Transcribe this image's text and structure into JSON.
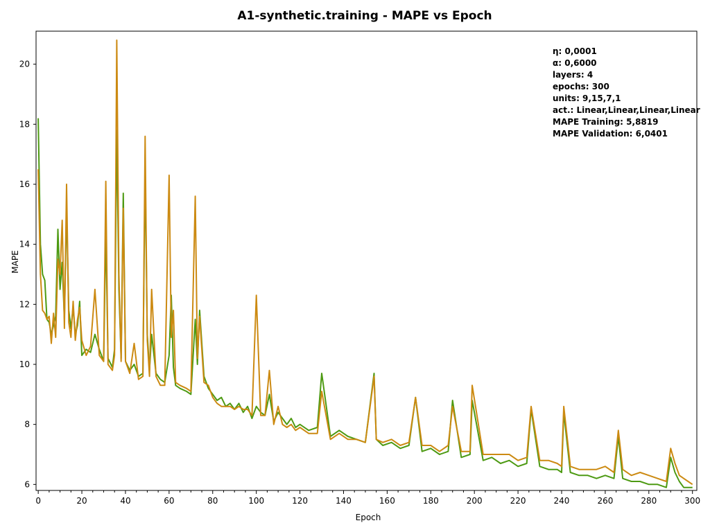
{
  "chart_data": {
    "type": "line",
    "title": "A1-synthetic.training - MAPE vs Epoch",
    "xlabel": "Epoch",
    "ylabel": "MAPE",
    "xlim": [
      -1,
      302
    ],
    "ylim": [
      5.8,
      21.1
    ],
    "x_ticks": [
      0,
      20,
      40,
      60,
      80,
      100,
      120,
      140,
      160,
      180,
      200,
      220,
      240,
      260,
      280,
      300
    ],
    "y_ticks": [
      6,
      8,
      10,
      12,
      14,
      16,
      18,
      20
    ],
    "grid": false,
    "colors": {
      "training": "#4d9a13",
      "validation": "#cc8a12"
    },
    "annotations": [
      "η: 0,0001",
      "α: 0,6000",
      "layers: 4",
      "epochs: 300",
      "units: 9,15,7,1",
      "act.: Linear,Linear,Linear,Linear",
      "MAPE Training: 5,8819",
      "MAPE Validation: 6,0401"
    ],
    "series": [
      {
        "key": "training",
        "x": [
          0,
          1,
          2,
          3,
          4,
          5,
          6,
          7,
          8,
          9,
          10,
          11,
          12,
          13,
          14,
          15,
          16,
          17,
          18,
          19,
          20,
          22,
          24,
          26,
          28,
          30,
          31,
          32,
          34,
          35,
          36,
          37,
          38,
          39,
          40,
          42,
          44,
          46,
          48,
          49,
          50,
          51,
          52,
          54,
          56,
          58,
          60,
          61,
          62,
          63,
          65,
          68,
          70,
          72,
          73,
          74,
          76,
          78,
          80,
          82,
          84,
          86,
          88,
          90,
          92,
          94,
          96,
          98,
          100,
          102,
          104,
          106,
          108,
          110,
          112,
          114,
          116,
          118,
          120,
          124,
          128,
          130,
          134,
          138,
          142,
          146,
          150,
          154,
          155,
          158,
          162,
          166,
          170,
          173,
          176,
          180,
          184,
          188,
          190,
          194,
          198,
          199,
          204,
          208,
          212,
          216,
          220,
          224,
          226,
          230,
          234,
          238,
          240,
          241,
          244,
          248,
          252,
          256,
          260,
          264,
          266,
          268,
          272,
          276,
          280,
          284,
          288,
          290,
          292,
          294,
          296,
          298,
          300
        ],
        "y": [
          18.2,
          14.0,
          13.0,
          12.8,
          11.5,
          11.4,
          11.0,
          11.3,
          11.6,
          14.5,
          12.5,
          13.4,
          11.5,
          15.2,
          11.8,
          11.2,
          11.9,
          11.0,
          11.3,
          12.1,
          10.3,
          10.5,
          10.4,
          11.0,
          10.5,
          10.1,
          14.5,
          10.2,
          9.9,
          10.5,
          17.8,
          12.5,
          10.2,
          15.7,
          10.1,
          9.8,
          10.0,
          9.6,
          9.7,
          16.5,
          11.0,
          9.8,
          11.0,
          9.7,
          9.5,
          9.4,
          10.3,
          12.3,
          9.9,
          9.3,
          9.2,
          9.1,
          9.0,
          11.5,
          10.0,
          11.8,
          9.6,
          9.2,
          9.0,
          8.8,
          8.9,
          8.6,
          8.7,
          8.5,
          8.7,
          8.4,
          8.6,
          8.2,
          8.6,
          8.4,
          8.3,
          9.0,
          8.1,
          8.4,
          8.2,
          8.0,
          8.2,
          7.9,
          8.0,
          7.8,
          7.9,
          9.7,
          7.6,
          7.8,
          7.6,
          7.5,
          7.4,
          9.7,
          7.5,
          7.3,
          7.4,
          7.2,
          7.3,
          8.9,
          7.1,
          7.2,
          7.0,
          7.1,
          8.8,
          6.9,
          7.0,
          8.8,
          6.8,
          6.9,
          6.7,
          6.8,
          6.6,
          6.7,
          8.5,
          6.6,
          6.5,
          6.5,
          6.4,
          8.4,
          6.4,
          6.3,
          6.3,
          6.2,
          6.3,
          6.2,
          7.6,
          6.2,
          6.1,
          6.1,
          6.0,
          6.0,
          5.9,
          6.9,
          6.4,
          6.1,
          5.9,
          5.9,
          5.9
        ]
      },
      {
        "key": "validation",
        "x": [
          0,
          1,
          2,
          3,
          4,
          5,
          6,
          7,
          8,
          9,
          10,
          11,
          12,
          13,
          14,
          15,
          16,
          17,
          18,
          19,
          20,
          22,
          24,
          26,
          28,
          30,
          31,
          32,
          34,
          35,
          36,
          37,
          38,
          39,
          40,
          42,
          44,
          46,
          48,
          49,
          50,
          51,
          52,
          54,
          56,
          58,
          60,
          61,
          62,
          63,
          65,
          68,
          70,
          72,
          73,
          74,
          76,
          78,
          80,
          82,
          84,
          86,
          88,
          90,
          92,
          94,
          96,
          98,
          100,
          102,
          104,
          106,
          108,
          110,
          112,
          114,
          116,
          118,
          120,
          124,
          128,
          130,
          134,
          138,
          142,
          146,
          150,
          154,
          155,
          158,
          162,
          166,
          170,
          173,
          176,
          180,
          184,
          188,
          190,
          194,
          198,
          199,
          204,
          208,
          212,
          216,
          220,
          224,
          226,
          230,
          234,
          238,
          240,
          241,
          244,
          248,
          252,
          256,
          260,
          264,
          266,
          268,
          272,
          276,
          280,
          284,
          288,
          290,
          292,
          294,
          296,
          298,
          300
        ],
        "y": [
          16.5,
          13.0,
          11.8,
          11.7,
          11.5,
          11.6,
          10.7,
          11.7,
          10.9,
          13.5,
          13.0,
          14.8,
          11.2,
          16.0,
          11.4,
          10.9,
          12.1,
          10.8,
          11.5,
          11.9,
          10.8,
          10.3,
          10.6,
          12.5,
          10.3,
          10.1,
          16.1,
          10.0,
          9.8,
          10.3,
          20.8,
          13.0,
          10.1,
          15.2,
          10.1,
          9.7,
          10.7,
          9.5,
          9.6,
          17.6,
          10.8,
          9.6,
          12.5,
          9.6,
          9.3,
          9.3,
          16.3,
          10.9,
          11.8,
          9.4,
          9.3,
          9.2,
          9.1,
          15.6,
          10.2,
          11.6,
          9.4,
          9.3,
          8.9,
          8.7,
          8.6,
          8.6,
          8.6,
          8.5,
          8.6,
          8.5,
          8.5,
          8.3,
          12.3,
          8.3,
          8.3,
          9.8,
          8.0,
          8.6,
          8.0,
          7.9,
          8.0,
          7.8,
          7.9,
          7.7,
          7.7,
          9.1,
          7.5,
          7.7,
          7.5,
          7.5,
          7.4,
          9.6,
          7.5,
          7.4,
          7.5,
          7.3,
          7.4,
          8.9,
          7.3,
          7.3,
          7.1,
          7.3,
          8.6,
          7.1,
          7.1,
          9.3,
          7.0,
          7.0,
          7.0,
          7.0,
          6.8,
          6.9,
          8.6,
          6.8,
          6.8,
          6.7,
          6.6,
          8.6,
          6.6,
          6.5,
          6.5,
          6.5,
          6.6,
          6.4,
          7.8,
          6.5,
          6.3,
          6.4,
          6.3,
          6.2,
          6.1,
          7.2,
          6.7,
          6.3,
          6.2,
          6.1,
          6.0
        ]
      }
    ]
  }
}
